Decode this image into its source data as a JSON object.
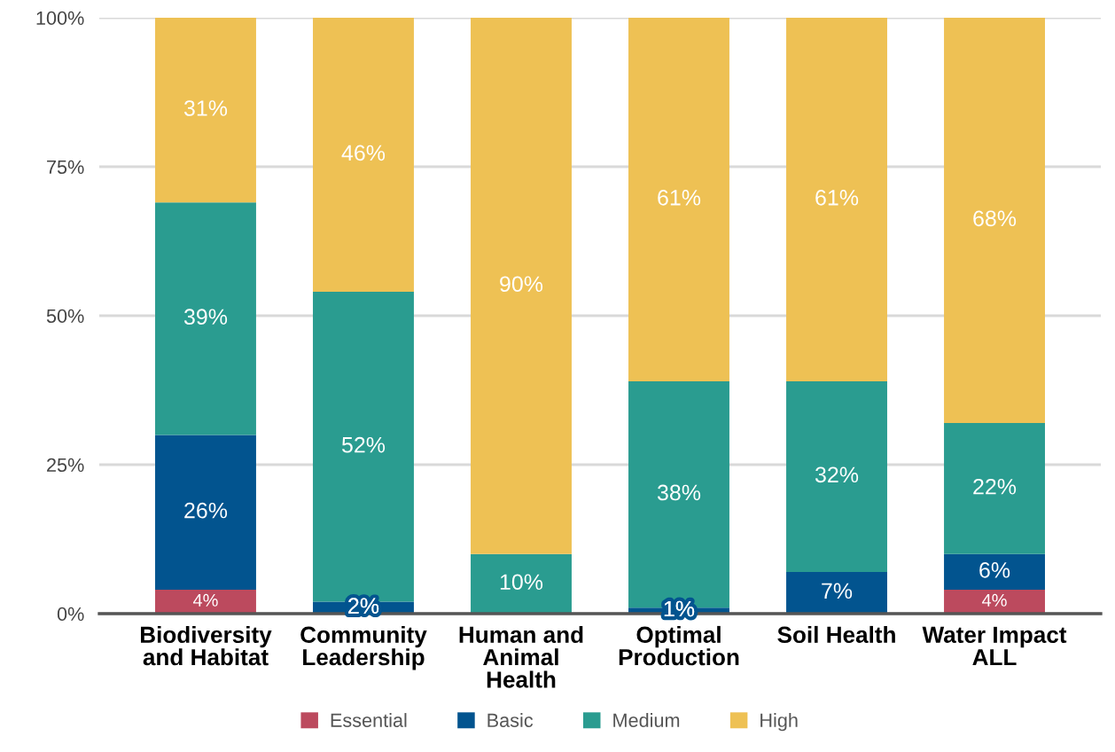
{
  "chart_data": {
    "type": "bar",
    "stacked": true,
    "categories": [
      "Biodiversity and Habitat",
      "Community Leadership",
      "Human and Animal Health",
      "Optimal Production",
      "Soil Health",
      "Water Impact ALL"
    ],
    "series": [
      {
        "name": "Essential",
        "color": "#bc4a5e",
        "values": [
          4,
          0,
          0,
          0,
          0,
          4
        ],
        "value_labels": [
          "4%",
          null,
          null,
          null,
          null,
          "4%"
        ]
      },
      {
        "name": "Basic",
        "color": "#02548f",
        "values": [
          26,
          2,
          0,
          1,
          7,
          6
        ],
        "value_labels": [
          "26%",
          "2%",
          null,
          "1%",
          "7%",
          "6%"
        ]
      },
      {
        "name": "Medium",
        "color": "#2a9c90",
        "values": [
          39,
          52,
          10,
          38,
          32,
          22
        ],
        "value_labels": [
          "39%",
          "52%",
          "10%",
          "38%",
          "32%",
          "22%"
        ]
      },
      {
        "name": "High",
        "color": "#eec154",
        "values": [
          31,
          46,
          90,
          61,
          61,
          68
        ],
        "value_labels": [
          "31%",
          "46%",
          "90%",
          "61%",
          "61%",
          "68%"
        ]
      }
    ],
    "ylim": [
      0,
      100
    ],
    "yticks": [
      {
        "value": 0,
        "label": "0%"
      },
      {
        "value": 25,
        "label": "25%"
      },
      {
        "value": 50,
        "label": "50%"
      },
      {
        "value": 75,
        "label": "75%"
      },
      {
        "value": 100,
        "label": "100%"
      }
    ],
    "grid": "y",
    "legend": "bottom"
  }
}
